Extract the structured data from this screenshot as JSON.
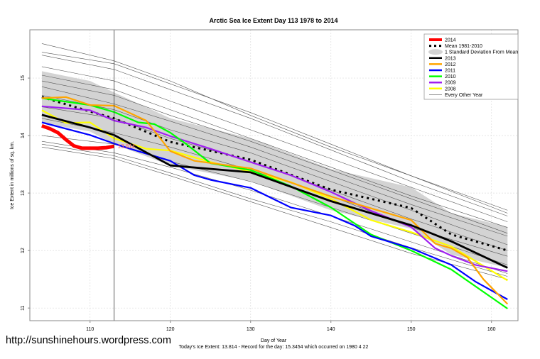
{
  "chart_data": {
    "type": "line",
    "title": "Arctic Sea Ice Extent Day 113 1978 to 2014",
    "xlabel": "Day of Year",
    "ylabel": "Ice Extent in millions of sq. km.",
    "subtitle": "Today's Ice Extent: 13.814  - Record for the day: 15.3454 which occurred on 1980 4 22",
    "watermark": "http://sunshinehours.wordpress.com",
    "xlim": [
      102.5,
      163.3
    ],
    "ylim": [
      10.78,
      15.84
    ],
    "xticks": [
      "110",
      "120",
      "130",
      "140",
      "150",
      "160"
    ],
    "yticks": [
      "11",
      "12",
      "13",
      "14",
      "15"
    ],
    "grid": true,
    "legend_position": "top-right",
    "marker_day": 113,
    "current_label": "13.814",
    "sd_band": {
      "name": "1 Standard Deviation From Mean",
      "color": "#d3d3d3",
      "x": [
        104,
        110,
        113,
        120,
        130,
        140,
        150,
        155,
        162
      ],
      "upper": [
        15.12,
        14.95,
        14.75,
        14.3,
        13.95,
        13.42,
        13.1,
        12.65,
        12.41
      ],
      "lower": [
        14.22,
        14.07,
        13.85,
        13.48,
        13.21,
        12.7,
        12.38,
        11.93,
        11.7
      ]
    },
    "gray_lines": {
      "name": "Every Other Year",
      "color": "#555555",
      "x": [
        104,
        113,
        120,
        130,
        140,
        150,
        162
      ],
      "lines": [
        [
          15.6,
          15.3,
          14.95,
          14.35,
          13.8,
          13.3,
          12.7
        ],
        [
          15.45,
          15.25,
          14.9,
          14.4,
          13.85,
          13.3,
          12.65
        ],
        [
          15.4,
          15.15,
          14.8,
          14.3,
          13.75,
          13.2,
          12.6
        ],
        [
          15.2,
          14.95,
          14.6,
          14.1,
          13.6,
          13.1,
          12.5
        ],
        [
          15.05,
          14.8,
          14.45,
          13.95,
          13.45,
          12.95,
          12.4
        ],
        [
          14.95,
          14.7,
          14.35,
          13.9,
          13.4,
          12.9,
          12.3
        ],
        [
          14.85,
          14.55,
          14.25,
          13.8,
          13.3,
          12.8,
          12.25
        ],
        [
          14.7,
          14.45,
          14.1,
          13.7,
          13.2,
          12.7,
          12.1
        ],
        [
          14.5,
          14.3,
          13.95,
          13.55,
          13.05,
          12.55,
          12.0
        ],
        [
          14.3,
          14.05,
          13.8,
          13.4,
          12.95,
          12.4,
          11.9
        ],
        [
          14.0,
          13.85,
          13.55,
          13.2,
          12.75,
          12.3,
          11.75
        ],
        [
          13.9,
          13.7,
          13.45,
          13.05,
          12.6,
          12.15,
          11.6
        ],
        [
          13.85,
          13.65,
          13.35,
          12.9,
          12.5,
          12.05,
          11.55
        ],
        [
          13.8,
          13.6,
          13.3,
          12.85,
          12.4,
          11.95,
          11.5
        ]
      ]
    },
    "series": [
      {
        "name": "Mean 1981-2010",
        "color": "#000000",
        "style": "dotted",
        "x": [
          104,
          110,
          113,
          120,
          130,
          140,
          150,
          155,
          162
        ],
        "y": [
          14.67,
          14.42,
          14.3,
          13.89,
          13.58,
          13.06,
          12.74,
          12.28,
          12.0
        ]
      },
      {
        "name": "2008",
        "color": "#ffff00",
        "x": [
          104,
          107,
          110,
          113,
          117,
          120,
          125,
          130,
          135,
          140,
          145,
          150,
          155,
          162
        ],
        "y": [
          14.44,
          14.22,
          14.23,
          13.95,
          13.77,
          13.74,
          13.54,
          13.37,
          13.19,
          12.9,
          12.53,
          12.32,
          12.07,
          11.48
        ]
      },
      {
        "name": "2009",
        "color": "#a020f0",
        "x": [
          104,
          110,
          113,
          117,
          120,
          125,
          130,
          135,
          140,
          145,
          150,
          153,
          155,
          158,
          162
        ],
        "y": [
          14.51,
          14.44,
          14.26,
          14.14,
          13.99,
          13.77,
          13.54,
          13.31,
          13.02,
          12.69,
          12.41,
          12.04,
          11.91,
          11.75,
          11.64
        ]
      },
      {
        "name": "2010",
        "color": "#00ff00",
        "x": [
          104,
          110,
          113,
          116,
          118,
          120,
          122,
          125,
          130,
          135,
          140,
          145,
          150,
          155,
          162
        ],
        "y": [
          14.65,
          14.53,
          14.41,
          14.23,
          14.2,
          14.05,
          13.85,
          13.52,
          13.4,
          13.12,
          12.75,
          12.28,
          12.0,
          11.67,
          10.99
        ]
      },
      {
        "name": "2011",
        "color": "#0000ff",
        "x": [
          104,
          110,
          113,
          115,
          120,
          123,
          125,
          130,
          135,
          140,
          143,
          145,
          150,
          155,
          158,
          162
        ],
        "y": [
          14.23,
          14.01,
          13.86,
          13.77,
          13.56,
          13.31,
          13.23,
          13.09,
          12.75,
          12.61,
          12.43,
          12.25,
          12.04,
          11.75,
          11.46,
          11.15
        ]
      },
      {
        "name": "2012",
        "color": "#ffa500",
        "x": [
          104,
          107,
          110,
          113,
          117,
          120,
          123,
          130,
          140,
          150,
          153,
          155,
          157,
          159,
          162
        ],
        "y": [
          14.65,
          14.67,
          14.53,
          14.52,
          14.26,
          13.73,
          13.56,
          13.43,
          12.94,
          12.53,
          12.12,
          12.04,
          11.88,
          11.5,
          11.07
        ]
      },
      {
        "name": "2013",
        "color": "#000000",
        "x": [
          104,
          110,
          113,
          120,
          130,
          140,
          150,
          155,
          162
        ],
        "y": [
          14.36,
          14.14,
          14.01,
          13.48,
          13.36,
          12.86,
          12.44,
          12.16,
          11.7
        ]
      },
      {
        "name": "2014",
        "color": "#ff0000",
        "x": [
          104,
          105,
          106,
          107,
          108,
          109,
          110,
          111,
          112,
          113
        ],
        "y": [
          14.17,
          14.12,
          14.05,
          13.93,
          13.82,
          13.78,
          13.78,
          13.78,
          13.79,
          13.814
        ]
      }
    ],
    "legend": [
      "2014",
      "Mean 1981-2010",
      "1 Standard Deviation From Mean",
      "2013",
      "2012",
      "2011",
      "2010",
      "2009",
      "2008",
      "Every Other Year"
    ]
  }
}
